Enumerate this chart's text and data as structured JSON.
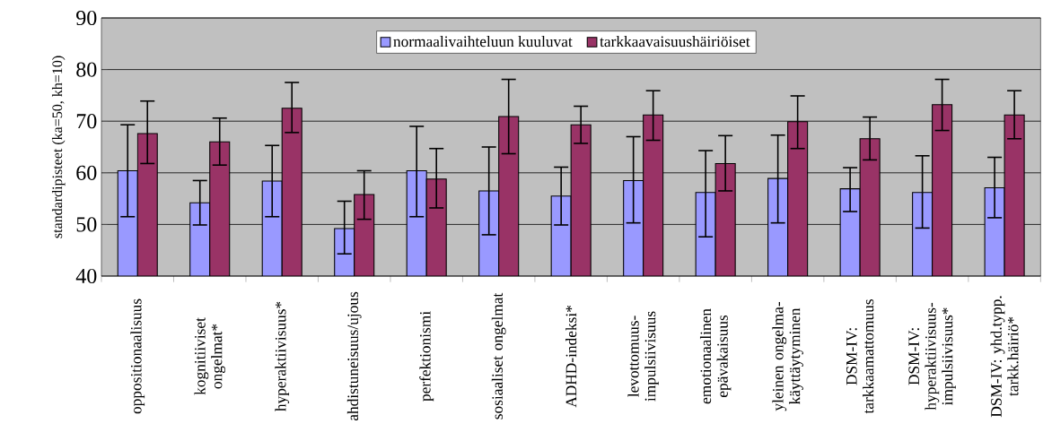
{
  "chart_data": {
    "type": "bar",
    "ylabel": "standardipisteet (ka=50, kh=10)",
    "categories": [
      "oppositionaalisuus",
      "kognitiiviset ongelmat*",
      "hyperaktiivisuus*",
      "ahdistuneisuus/ujous",
      "perfektionismi",
      "sosiaaliset ongelmat",
      "ADHD-indeksi*",
      "levottomuus-impulsiivisuus",
      "emotionaalinen epävakaisuus",
      "yleinen ongelma-käyttäytyminen",
      "DSM-IV: tarkkaamattomuus",
      "DSM-IV: hyperaktiivisuus-impulsiivisuus*",
      "DSM-IV: yhd.typp. tarkk.häiriö*"
    ],
    "series": [
      {
        "name": "normaalivaihteluun kuuluvat",
        "color": "#9999ff",
        "values": [
          60.4,
          54.2,
          58.4,
          49.2,
          60.4,
          56.5,
          55.5,
          58.5,
          56.2,
          58.9,
          56.9,
          56.2,
          57.1
        ],
        "errors": [
          [
            51.5,
            69.3
          ],
          [
            49.9,
            58.5
          ],
          [
            51.5,
            65.3
          ],
          [
            44.3,
            54.5
          ],
          [
            51.5,
            69.0
          ],
          [
            48.0,
            65.0
          ],
          [
            49.9,
            61.1
          ],
          [
            50.3,
            67.0
          ],
          [
            47.6,
            64.3
          ],
          [
            50.3,
            67.3
          ],
          [
            52.5,
            61.0
          ],
          [
            49.3,
            63.3
          ],
          [
            51.3,
            63.0
          ]
        ]
      },
      {
        "name": "tarkkaavaisuushäiriöiset",
        "color": "#993366",
        "values": [
          67.6,
          66.0,
          72.5,
          55.8,
          58.8,
          70.9,
          69.3,
          71.2,
          61.8,
          69.9,
          66.6,
          73.2,
          71.2
        ],
        "errors": [
          [
            61.8,
            73.9
          ],
          [
            61.5,
            70.6
          ],
          [
            67.8,
            77.5
          ],
          [
            51.0,
            60.4
          ],
          [
            53.2,
            64.7
          ],
          [
            63.7,
            78.1
          ],
          [
            65.7,
            72.9
          ],
          [
            66.3,
            75.9
          ],
          [
            56.5,
            67.2
          ],
          [
            64.7,
            74.9
          ],
          [
            62.5,
            70.8
          ],
          [
            68.2,
            78.1
          ],
          [
            66.6,
            75.9
          ]
        ]
      }
    ],
    "ylim": [
      40,
      90
    ],
    "yticks": [
      40,
      50,
      60,
      70,
      80,
      90
    ],
    "grid": "y",
    "legend": "top"
  }
}
